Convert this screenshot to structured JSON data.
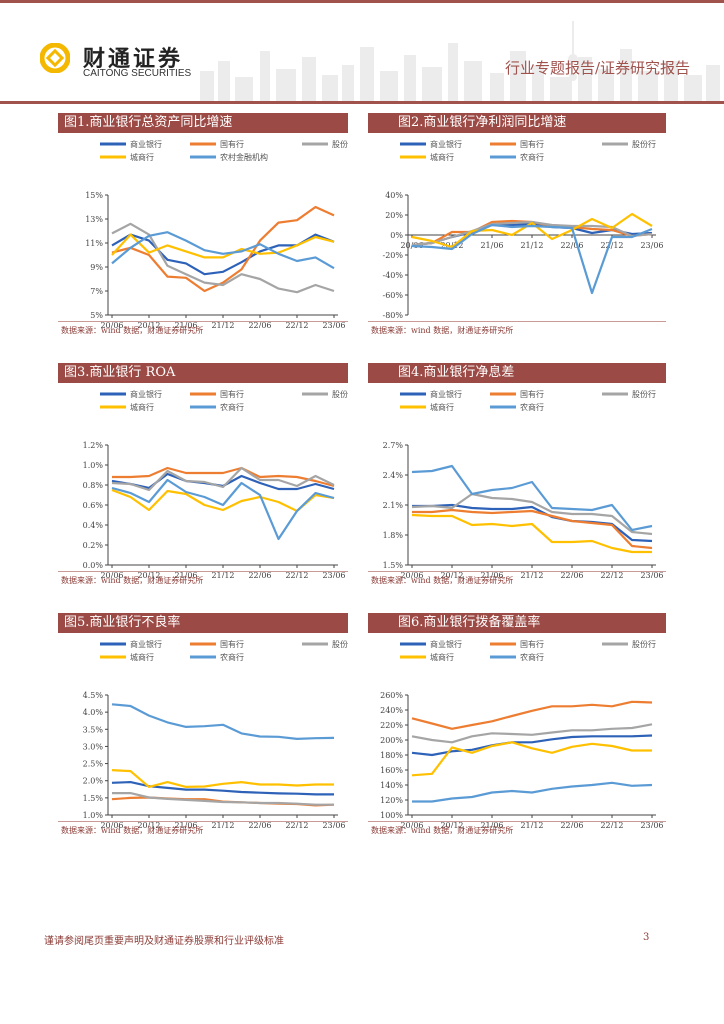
{
  "header": {
    "brand_cn": "财通证券",
    "brand_en": "CAITONG SECURITIES",
    "report_type": "行业专题报告/证券研究报告",
    "logo_color": "#f5b800",
    "accent_color": "#9c4a45"
  },
  "footer": {
    "disclaimer": "谨请参阅尾页重要声明及财通证券股票和行业评级标准",
    "page_number": "3"
  },
  "series_colors": {
    "商业银行": "#2e62b8",
    "国有行": "#ed7d31",
    "股份行": "#a5a5a5",
    "城商行": "#ffc000",
    "农商行": "#5b9bd5",
    "农村金融机构": "#5b9bd5"
  },
  "chart_data": [
    {
      "id": "fig1",
      "type": "line",
      "title": "图1.商业银行总资产同比增速",
      "source": "数据来源：wind 数据，财通证券研究所",
      "x": [
        "20/06",
        "20/09",
        "20/12",
        "21/03",
        "21/06",
        "21/09",
        "21/12",
        "22/03",
        "22/06",
        "22/09",
        "22/12",
        "23/03",
        "23/06"
      ],
      "x_tick_labels": [
        "20/06",
        "20/12",
        "21/06",
        "21/12",
        "22/06",
        "22/12",
        "23/06"
      ],
      "ylim": [
        5,
        15
      ],
      "y_ticks": [
        5,
        7,
        9,
        11,
        13,
        15
      ],
      "y_tick_format": "int_pct",
      "ylabel": "",
      "xlabel": "",
      "legend_position": "top",
      "series": [
        {
          "name": "商业银行",
          "values": [
            10.8,
            11.7,
            11.2,
            9.6,
            9.3,
            8.4,
            8.6,
            9.4,
            10.3,
            10.8,
            10.8,
            11.7,
            11.1
          ]
        },
        {
          "name": "国有行",
          "values": [
            10.2,
            10.6,
            10.0,
            8.2,
            8.1,
            7.0,
            7.7,
            8.8,
            11.2,
            12.7,
            12.9,
            14.0,
            13.3
          ]
        },
        {
          "name": "股份行",
          "values": [
            11.8,
            12.6,
            11.7,
            9.1,
            8.4,
            7.7,
            7.5,
            8.4,
            8.0,
            7.2,
            6.9,
            7.5,
            7.0
          ]
        },
        {
          "name": "城商行",
          "values": [
            10.0,
            11.7,
            10.2,
            10.8,
            10.3,
            9.8,
            9.8,
            10.5,
            10.1,
            10.2,
            10.8,
            11.5,
            11.1
          ]
        },
        {
          "name": "农村金融机构",
          "values": [
            9.3,
            10.6,
            11.6,
            11.9,
            11.2,
            10.4,
            10.1,
            10.3,
            10.9,
            10.1,
            9.5,
            9.8,
            8.9
          ]
        }
      ]
    },
    {
      "id": "fig2",
      "type": "line",
      "title": "图2.商业银行净利润同比增速",
      "source": "数据来源：wind 数据，财通证券研究所",
      "x": [
        "20/06",
        "20/09",
        "20/12",
        "21/03",
        "21/06",
        "21/09",
        "21/12",
        "22/03",
        "22/06",
        "22/09",
        "22/12",
        "23/03",
        "23/06"
      ],
      "x_tick_labels": [
        "20/06",
        "20/12",
        "21/06",
        "21/12",
        "22/06",
        "22/12",
        "23/06"
      ],
      "ylim": [
        -80,
        40
      ],
      "y_ticks": [
        -80,
        -60,
        -40,
        -20,
        0,
        20,
        40
      ],
      "y_tick_format": "int_pct",
      "ylabel": "",
      "xlabel": "",
      "legend_position": "top",
      "x_labels_at_zero": true,
      "series": [
        {
          "name": "商业银行",
          "values": [
            -10,
            -8,
            -2,
            3,
            10,
            10,
            11,
            8,
            7,
            2,
            5,
            1,
            2
          ]
        },
        {
          "name": "国有行",
          "values": [
            -10,
            -8,
            3,
            3,
            13,
            14,
            13,
            9,
            8,
            6,
            5,
            -1,
            1
          ]
        },
        {
          "name": "股份行",
          "values": [
            -10,
            -8,
            -2,
            4,
            11,
            12,
            13,
            10,
            9,
            9,
            8,
            -1,
            1
          ]
        },
        {
          "name": "城商行",
          "values": [
            -2,
            -6,
            -12,
            4,
            5,
            0,
            12,
            -4,
            5,
            16,
            7,
            21,
            9
          ]
        },
        {
          "name": "农商行",
          "values": [
            -11,
            -12,
            -14,
            1,
            10,
            8,
            9,
            8,
            7,
            -58,
            -2,
            -2,
            6
          ]
        }
      ]
    },
    {
      "id": "fig3",
      "type": "line",
      "title": "图3.商业银行 ROA",
      "source": "数据来源：wind 数据，财通证券研究所",
      "x": [
        "20/06",
        "20/09",
        "20/12",
        "21/03",
        "21/06",
        "21/09",
        "21/12",
        "22/03",
        "22/06",
        "22/09",
        "22/12",
        "23/03",
        "23/06"
      ],
      "x_tick_labels": [
        "20/06",
        "20/12",
        "21/06",
        "21/12",
        "22/06",
        "22/12",
        "23/06"
      ],
      "ylim": [
        0,
        1.2
      ],
      "y_ticks": [
        0,
        0.2,
        0.4,
        0.6,
        0.8,
        1.0,
        1.2
      ],
      "y_tick_format": "one_dec_pct",
      "ylabel": "",
      "xlabel": "",
      "legend_position": "top",
      "series": [
        {
          "name": "商业银行",
          "values": [
            0.84,
            0.81,
            0.77,
            0.91,
            0.84,
            0.82,
            0.79,
            0.89,
            0.82,
            0.76,
            0.76,
            0.81,
            0.76
          ]
        },
        {
          "name": "国有行",
          "values": [
            0.88,
            0.88,
            0.89,
            0.97,
            0.92,
            0.92,
            0.92,
            0.97,
            0.88,
            0.89,
            0.88,
            0.84,
            0.79
          ]
        },
        {
          "name": "股份行",
          "values": [
            0.82,
            0.81,
            0.75,
            0.94,
            0.84,
            0.83,
            0.78,
            0.97,
            0.85,
            0.85,
            0.79,
            0.89,
            0.8
          ]
        },
        {
          "name": "城商行",
          "values": [
            0.75,
            0.68,
            0.55,
            0.74,
            0.71,
            0.6,
            0.55,
            0.64,
            0.68,
            0.63,
            0.54,
            0.7,
            0.67
          ]
        },
        {
          "name": "农商行",
          "values": [
            0.77,
            0.72,
            0.63,
            0.85,
            0.73,
            0.68,
            0.6,
            0.82,
            0.7,
            0.26,
            0.54,
            0.72,
            0.67
          ]
        }
      ]
    },
    {
      "id": "fig4",
      "type": "line",
      "title": "图4.商业银行净息差",
      "source": "数据来源：wind 数据，财通证券研究所",
      "x": [
        "20/06",
        "20/09",
        "20/12",
        "21/03",
        "21/06",
        "21/09",
        "21/12",
        "22/03",
        "22/06",
        "22/09",
        "22/12",
        "23/03",
        "23/06"
      ],
      "x_tick_labels": [
        "20/06",
        "20/12",
        "21/06",
        "21/12",
        "22/06",
        "22/12",
        "23/06"
      ],
      "ylim": [
        1.5,
        2.7
      ],
      "y_ticks": [
        1.5,
        1.8,
        2.1,
        2.4,
        2.7
      ],
      "y_tick_format": "one_dec_pct",
      "ylabel": "",
      "xlabel": "",
      "legend_position": "top",
      "series": [
        {
          "name": "商业银行",
          "values": [
            2.09,
            2.09,
            2.1,
            2.07,
            2.06,
            2.06,
            2.08,
            1.98,
            1.94,
            1.93,
            1.91,
            1.75,
            1.74
          ]
        },
        {
          "name": "国有行",
          "values": [
            2.03,
            2.03,
            2.05,
            2.03,
            2.02,
            2.03,
            2.04,
            1.99,
            1.94,
            1.92,
            1.9,
            1.69,
            1.67
          ]
        },
        {
          "name": "股份行",
          "values": [
            2.08,
            2.09,
            2.07,
            2.21,
            2.17,
            2.16,
            2.13,
            2.03,
            2.01,
            2.01,
            1.99,
            1.83,
            1.81
          ]
        },
        {
          "name": "城商行",
          "values": [
            2.0,
            1.99,
            1.99,
            1.9,
            1.91,
            1.89,
            1.91,
            1.73,
            1.73,
            1.74,
            1.67,
            1.63,
            1.63
          ]
        },
        {
          "name": "农商行",
          "values": [
            2.43,
            2.44,
            2.49,
            2.21,
            2.25,
            2.27,
            2.33,
            2.07,
            2.06,
            2.05,
            2.1,
            1.85,
            1.89
          ]
        }
      ]
    },
    {
      "id": "fig5",
      "type": "line",
      "title": "图5.商业银行不良率",
      "source": "数据来源：wind 数据，财通证券研究所",
      "x": [
        "20/06",
        "20/09",
        "20/12",
        "21/03",
        "21/06",
        "21/09",
        "21/12",
        "22/03",
        "22/06",
        "22/09",
        "22/12",
        "23/03",
        "23/06"
      ],
      "x_tick_labels": [
        "20/06",
        "20/12",
        "21/06",
        "21/12",
        "22/06",
        "22/12",
        "23/06"
      ],
      "ylim": [
        1.0,
        4.5
      ],
      "y_ticks": [
        1.0,
        1.5,
        2.0,
        2.5,
        3.0,
        3.5,
        4.0,
        4.5
      ],
      "y_tick_format": "one_dec_pct",
      "ylabel": "",
      "xlabel": "",
      "legend_position": "top",
      "series": [
        {
          "name": "商业银行",
          "values": [
            1.94,
            1.96,
            1.84,
            1.79,
            1.74,
            1.74,
            1.71,
            1.67,
            1.65,
            1.63,
            1.62,
            1.6,
            1.6
          ]
        },
        {
          "name": "国有行",
          "values": [
            1.46,
            1.5,
            1.51,
            1.48,
            1.46,
            1.46,
            1.39,
            1.37,
            1.35,
            1.33,
            1.32,
            1.28,
            1.3
          ]
        },
        {
          "name": "股份行",
          "values": [
            1.64,
            1.64,
            1.51,
            1.47,
            1.44,
            1.41,
            1.38,
            1.37,
            1.35,
            1.35,
            1.33,
            1.3,
            1.3
          ]
        },
        {
          "name": "城商行",
          "values": [
            2.31,
            2.28,
            1.82,
            1.96,
            1.82,
            1.83,
            1.91,
            1.96,
            1.89,
            1.89,
            1.86,
            1.89,
            1.89
          ]
        },
        {
          "name": "农商行",
          "values": [
            4.23,
            4.18,
            3.9,
            3.7,
            3.57,
            3.59,
            3.63,
            3.38,
            3.29,
            3.28,
            3.22,
            3.24,
            3.25
          ]
        }
      ]
    },
    {
      "id": "fig6",
      "type": "line",
      "title": "图6.商业银行拨备覆盖率",
      "source": "数据来源：wind 数据，财通证券研究所",
      "x": [
        "20/06",
        "20/09",
        "20/12",
        "21/03",
        "21/06",
        "21/09",
        "21/12",
        "22/03",
        "22/06",
        "22/09",
        "22/12",
        "23/03",
        "23/06"
      ],
      "x_tick_labels": [
        "20/06",
        "20/12",
        "21/06",
        "21/12",
        "22/06",
        "22/12",
        "23/06"
      ],
      "ylim": [
        100,
        260
      ],
      "y_ticks": [
        100,
        120,
        140,
        160,
        180,
        200,
        220,
        240,
        260
      ],
      "y_tick_format": "int_pct",
      "ylabel": "",
      "xlabel": "",
      "legend_position": "top",
      "series": [
        {
          "name": "商业银行",
          "values": [
            183,
            180,
            185,
            187,
            193,
            197,
            197,
            201,
            204,
            205,
            205,
            205,
            206
          ]
        },
        {
          "name": "国有行",
          "values": [
            229,
            222,
            215,
            220,
            225,
            232,
            239,
            245,
            245,
            247,
            245,
            251,
            250
          ]
        },
        {
          "name": "股份行",
          "values": [
            205,
            200,
            197,
            205,
            209,
            208,
            207,
            210,
            213,
            213,
            215,
            216,
            221
          ]
        },
        {
          "name": "城商行",
          "values": [
            153,
            155,
            190,
            183,
            192,
            197,
            189,
            183,
            191,
            195,
            192,
            186,
            186
          ]
        },
        {
          "name": "农商行",
          "values": [
            118,
            118,
            122,
            124,
            130,
            132,
            130,
            135,
            138,
            140,
            143,
            139,
            140
          ]
        }
      ]
    }
  ]
}
